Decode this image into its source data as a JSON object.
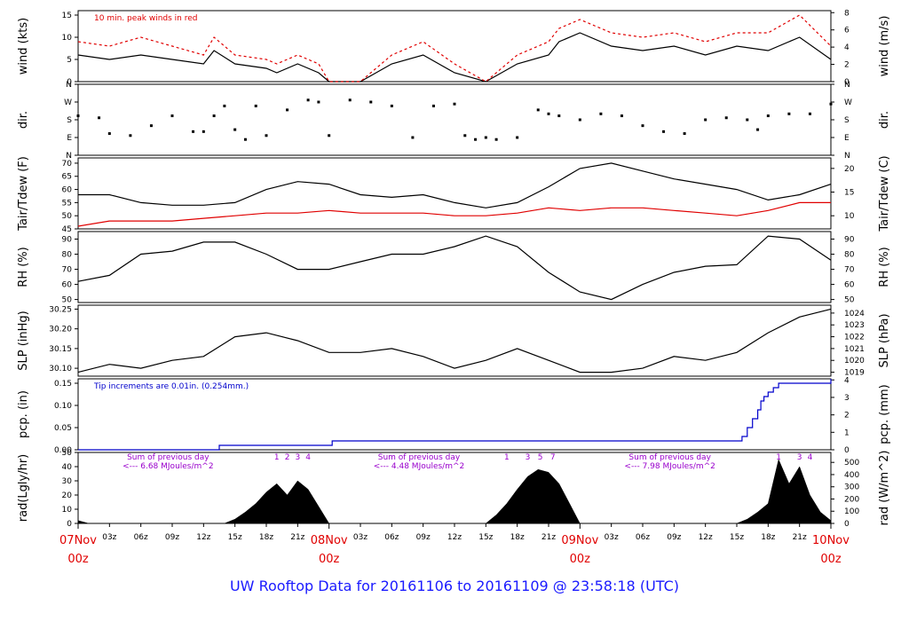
{
  "title": "UW Rooftop Data for 20161106  to  20161109 @ 23:58:18  (UTC)",
  "colors": {
    "main": "#000000",
    "peak": "#e00000",
    "dew": "#e00000",
    "precip": "#0000cc",
    "note_peak": "#e00000",
    "note_precip": "#0000cc",
    "note_rad": "#9900cc",
    "date": "#e00000",
    "title": "#1a1aff"
  },
  "chart_data": {
    "type": "line",
    "time_range_hours": [
      0,
      72
    ],
    "x_ticks": [
      "03z",
      "06z",
      "09z",
      "12z",
      "15z",
      "18z",
      "21z",
      "03z",
      "06z",
      "09z",
      "12z",
      "15z",
      "18z",
      "21z",
      "03z",
      "06z",
      "09z",
      "12z",
      "15z",
      "18z",
      "21z"
    ],
    "x_tick_hours": [
      3,
      6,
      9,
      12,
      15,
      18,
      21,
      27,
      30,
      33,
      36,
      39,
      42,
      45,
      51,
      54,
      57,
      60,
      63,
      66,
      69
    ],
    "date_labels": [
      {
        "day": "07Nov",
        "hour": "00z",
        "at": 0
      },
      {
        "day": "08Nov",
        "hour": "00z",
        "at": 24
      },
      {
        "day": "09Nov",
        "hour": "00z",
        "at": 48
      },
      {
        "day": "10Nov",
        "hour": "00z",
        "at": 72
      }
    ],
    "panels": [
      {
        "id": "wind",
        "ylabel_left": "wind (kts)",
        "ylabel_right": "wind (m/s)",
        "ylim": [
          0,
          16
        ],
        "left_ticks": [
          "0",
          "5",
          "10",
          "15"
        ],
        "left_tick_values": [
          0,
          5,
          10,
          15
        ],
        "right_ticks": [
          "0",
          "2",
          "4",
          "6",
          "8"
        ],
        "right_tick_values": [
          0,
          3.89,
          7.78,
          11.66,
          15.55
        ],
        "annotation": "10 min. peak winds in red",
        "series": [
          {
            "name": "wind",
            "x": [
              0,
              3,
              6,
              9,
              12,
              13,
              15,
              18,
              19,
              21,
              23,
              24,
              27,
              30,
              33,
              36,
              39,
              42,
              45,
              46,
              48,
              51,
              54,
              57,
              60,
              63,
              66,
              69,
              72
            ],
            "y": [
              6,
              5,
              6,
              5,
              4,
              7,
              4,
              3,
              2,
              4,
              2,
              0,
              0,
              4,
              6,
              2,
              0,
              4,
              6,
              9,
              11,
              8,
              7,
              8,
              6,
              8,
              7,
              10,
              5
            ]
          },
          {
            "name": "10 min. peak winds",
            "x": [
              0,
              3,
              6,
              9,
              12,
              13,
              15,
              18,
              19,
              21,
              23,
              24,
              27,
              30,
              33,
              36,
              39,
              42,
              45,
              46,
              48,
              51,
              54,
              57,
              60,
              63,
              66,
              69,
              72
            ],
            "y": [
              9,
              8,
              10,
              8,
              6,
              10,
              6,
              5,
              4,
              6,
              4,
              0,
              0,
              6,
              9,
              4,
              0,
              6,
              9,
              12,
              14,
              11,
              10,
              11,
              9,
              11,
              11,
              15,
              8
            ]
          }
        ]
      },
      {
        "id": "dir",
        "ylabel_left": "dir.",
        "ylabel_right": "dir.",
        "ylim": [
          0,
          360
        ],
        "left_ticks": [
          "N",
          "E",
          "S",
          "W",
          "N"
        ],
        "left_tick_values": [
          0,
          90,
          180,
          270,
          360
        ],
        "right_ticks": [
          "N",
          "E",
          "S",
          "W",
          "N"
        ],
        "right_tick_values": [
          0,
          90,
          180,
          270,
          360
        ],
        "series": [
          {
            "name": "direction",
            "x": [
              0,
              2,
              3,
              5,
              7,
              9,
              11,
              12,
              13,
              14,
              15,
              16,
              17,
              18,
              20,
              22,
              23,
              24,
              26,
              28,
              30,
              32,
              34,
              36,
              37,
              38,
              39,
              40,
              42,
              44,
              45,
              46,
              48,
              50,
              52,
              54,
              56,
              58,
              60,
              62,
              64,
              65,
              66,
              68,
              70,
              72
            ],
            "y": [
              200,
              190,
              110,
              100,
              150,
              200,
              120,
              120,
              200,
              250,
              130,
              80,
              250,
              100,
              230,
              280,
              270,
              100,
              280,
              270,
              250,
              90,
              250,
              260,
              100,
              80,
              90,
              80,
              90,
              230,
              210,
              200,
              180,
              210,
              200,
              150,
              120,
              110,
              180,
              190,
              180,
              130,
              200,
              210,
              210,
              260
            ]
          }
        ]
      },
      {
        "id": "temp",
        "ylabel_left": "Tair/Tdew (F)",
        "ylabel_right": "Tair/Tdew (C)",
        "ylim": [
          45,
          72
        ],
        "left_ticks": [
          "45",
          "50",
          "55",
          "60",
          "65",
          "70"
        ],
        "left_tick_values": [
          45,
          50,
          55,
          60,
          65,
          70
        ],
        "right_ticks": [
          "10",
          "15",
          "20"
        ],
        "right_tick_values": [
          50,
          59,
          68
        ],
        "series": [
          {
            "name": "Tair",
            "x": [
              0,
              3,
              6,
              9,
              12,
              15,
              18,
              21,
              24,
              27,
              30,
              33,
              36,
              39,
              42,
              45,
              48,
              51,
              54,
              57,
              60,
              63,
              66,
              69,
              72
            ],
            "y": [
              58,
              58,
              55,
              54,
              54,
              55,
              60,
              63,
              62,
              58,
              57,
              58,
              55,
              53,
              55,
              61,
              68,
              70,
              67,
              64,
              62,
              60,
              56,
              58,
              62
            ]
          },
          {
            "name": "Tdew",
            "x": [
              0,
              3,
              6,
              9,
              12,
              15,
              18,
              21,
              24,
              27,
              30,
              33,
              36,
              39,
              42,
              45,
              48,
              51,
              54,
              57,
              60,
              63,
              66,
              69,
              72
            ],
            "y": [
              46,
              48,
              48,
              48,
              49,
              50,
              51,
              51,
              52,
              51,
              51,
              51,
              50,
              50,
              51,
              53,
              52,
              53,
              53,
              52,
              51,
              50,
              52,
              55,
              55
            ]
          }
        ]
      },
      {
        "id": "rh",
        "ylabel_left": "RH (%)",
        "ylabel_right": "RH (%)",
        "ylim": [
          48,
          95
        ],
        "left_ticks": [
          "50",
          "60",
          "70",
          "80",
          "90"
        ],
        "left_tick_values": [
          50,
          60,
          70,
          80,
          90
        ],
        "right_ticks": [
          "50",
          "60",
          "70",
          "80",
          "90"
        ],
        "right_tick_values": [
          50,
          60,
          70,
          80,
          90
        ],
        "series": [
          {
            "name": "RH",
            "x": [
              0,
              3,
              6,
              9,
              12,
              15,
              18,
              21,
              24,
              27,
              30,
              33,
              36,
              39,
              42,
              45,
              48,
              51,
              54,
              57,
              60,
              63,
              66,
              69,
              72
            ],
            "y": [
              62,
              66,
              80,
              82,
              88,
              88,
              80,
              70,
              70,
              75,
              80,
              80,
              85,
              92,
              85,
              68,
              55,
              50,
              60,
              68,
              72,
              73,
              92,
              90,
              76
            ]
          }
        ]
      },
      {
        "id": "slp",
        "ylabel_left": "SLP (inHg)",
        "ylabel_right": "SLP (hPa)",
        "ylim": [
          30.08,
          30.26
        ],
        "left_ticks": [
          "30.10",
          "30.15",
          "30.20",
          "30.25"
        ],
        "left_tick_values": [
          30.1,
          30.15,
          30.2,
          30.25
        ],
        "right_ticks": [
          "1019",
          "1020",
          "1021",
          "1022",
          "1023",
          "1024"
        ],
        "right_tick_values": [
          30.09,
          30.12,
          30.15,
          30.18,
          30.21,
          30.24
        ],
        "series": [
          {
            "name": "SLP",
            "x": [
              0,
              3,
              6,
              9,
              12,
              15,
              18,
              21,
              24,
              27,
              30,
              33,
              36,
              39,
              42,
              45,
              48,
              51,
              54,
              57,
              60,
              63,
              66,
              69,
              72
            ],
            "y": [
              30.09,
              30.11,
              30.1,
              30.12,
              30.13,
              30.18,
              30.19,
              30.17,
              30.14,
              30.14,
              30.15,
              30.13,
              30.1,
              30.12,
              30.15,
              30.12,
              30.09,
              30.09,
              30.1,
              30.13,
              30.12,
              30.14,
              30.19,
              30.23,
              30.25
            ]
          }
        ]
      },
      {
        "id": "pcp",
        "ylabel_left": "pcp. (in)",
        "ylabel_right": "pcp. (mm)",
        "ylim": [
          0,
          0.16
        ],
        "left_ticks": [
          "0.00",
          "0.05",
          "0.10",
          "0.15"
        ],
        "left_tick_values": [
          0,
          0.05,
          0.1,
          0.15
        ],
        "right_ticks": [
          "0",
          "1",
          "2",
          "3",
          "4"
        ],
        "right_tick_values": [
          0,
          0.0394,
          0.0787,
          0.1181,
          0.1575
        ],
        "annotation": "Tip increments are 0.01in. (0.254mm.)",
        "series": [
          {
            "name": "precip",
            "x": [
              0,
              13,
              13.5,
              24,
              24.3,
              63,
              63.5,
              64,
              64.5,
              65,
              65.3,
              65.6,
              66,
              66.5,
              67,
              72
            ],
            "y": [
              0,
              0,
              0.01,
              0.01,
              0.02,
              0.02,
              0.03,
              0.05,
              0.07,
              0.09,
              0.11,
              0.12,
              0.13,
              0.14,
              0.15,
              0.16
            ]
          }
        ]
      },
      {
        "id": "rad",
        "ylabel_left": "rad(Lgly/hr)",
        "ylabel_right": "rad (W/m^2)",
        "ylim": [
          0,
          50
        ],
        "left_ticks": [
          "0",
          "10",
          "20",
          "30",
          "40",
          "50"
        ],
        "left_tick_values": [
          0,
          10,
          20,
          30,
          40,
          50
        ],
        "right_ticks": [
          "0",
          "100",
          "200",
          "300",
          "400",
          "500"
        ],
        "right_tick_values": [
          0,
          8.6,
          17.2,
          25.8,
          34.4,
          43.0
        ],
        "notes": [
          {
            "line1": "Sum of previous day",
            "line2": "<--- 6.68 MJoules/m^2",
            "at": 12
          },
          {
            "line1": "Sum of previous day",
            "line2": "<--- 4.48 MJoules/m^2",
            "at": 36
          },
          {
            "line1": "Sum of previous day",
            "line2": "<--- 7.98 MJoules/m^2",
            "at": 60
          }
        ],
        "hour_marks": [
          {
            "text": "1",
            "at": 19
          },
          {
            "text": "2",
            "at": 20
          },
          {
            "text": "3",
            "at": 21
          },
          {
            "text": "4",
            "at": 22
          },
          {
            "text": "1",
            "at": 41
          },
          {
            "text": "3",
            "at": 43
          },
          {
            "text": "5",
            "at": 44.2
          },
          {
            "text": "7",
            "at": 45.4
          },
          {
            "text": "1",
            "at": 67
          },
          {
            "text": "3",
            "at": 69
          },
          {
            "text": "4",
            "at": 70
          }
        ],
        "series": [
          {
            "name": "radiation",
            "x": [
              0,
              0.5,
              1,
              14,
              15,
              16,
              17,
              18,
              19,
              20,
              21,
              22,
              23,
              24,
              39,
              40,
              41,
              42,
              43,
              44,
              45,
              46,
              47,
              48,
              63,
              64,
              65,
              66,
              67,
              68,
              69,
              70,
              71,
              72
            ],
            "y": [
              2,
              1,
              0,
              0,
              3,
              8,
              14,
              22,
              28,
              20,
              30,
              24,
              12,
              0,
              0,
              6,
              14,
              24,
              33,
              38,
              36,
              28,
              14,
              0,
              0,
              3,
              8,
              14,
              45,
              28,
              40,
              20,
              8,
              2
            ]
          }
        ]
      }
    ]
  }
}
